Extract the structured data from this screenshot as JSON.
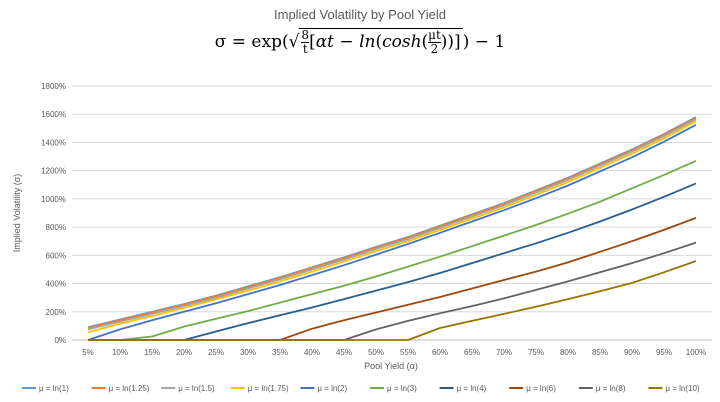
{
  "chart_data": {
    "type": "line",
    "title": "Implied Volatility by Pool Yield",
    "formula": {
      "lhs": "σ = exp",
      "frac_num": "8",
      "frac_den": "t",
      "body": "αt − ln",
      "cosh": "cosh",
      "inner_num": "μt",
      "inner_den": "2",
      "tail": "− 1"
    },
    "xlabel": "Pool Yield (α)",
    "ylabel": "Implied Volatility (σ)",
    "categories": [
      "5%",
      "10%",
      "15%",
      "20%",
      "25%",
      "30%",
      "35%",
      "40%",
      "45%",
      "50%",
      "55%",
      "60%",
      "65%",
      "70%",
      "75%",
      "80%",
      "85%",
      "90%",
      "95%",
      "100%"
    ],
    "yticks": [
      "0%",
      "200%",
      "400%",
      "600%",
      "800%",
      "1000%",
      "1200%",
      "1400%",
      "1600%",
      "1800%"
    ],
    "ylim": [
      0,
      1800
    ],
    "grid": true,
    "legend_position": "bottom",
    "series": [
      {
        "name": "μ = ln(1)",
        "color": "#5b9bd5",
        "values": [
          90,
          145,
          200,
          255,
          315,
          380,
          445,
          515,
          585,
          660,
          730,
          810,
          890,
          970,
          1060,
          1150,
          1250,
          1350,
          1460,
          1580
        ]
      },
      {
        "name": "μ = ln(1.25)",
        "color": "#ed7d31",
        "values": [
          85,
          140,
          195,
          250,
          310,
          375,
          440,
          510,
          580,
          655,
          725,
          805,
          885,
          965,
          1055,
          1145,
          1245,
          1345,
          1455,
          1575
        ]
      },
      {
        "name": "μ = ln(1.5)",
        "color": "#a5a5a5",
        "values": [
          75,
          130,
          185,
          242,
          300,
          365,
          430,
          500,
          570,
          645,
          715,
          795,
          875,
          955,
          1045,
          1135,
          1235,
          1335,
          1445,
          1565
        ]
      },
      {
        "name": "μ = ln(1.75)",
        "color": "#ffc000",
        "values": [
          55,
          115,
          170,
          228,
          288,
          350,
          415,
          485,
          555,
          630,
          700,
          780,
          860,
          940,
          1030,
          1120,
          1220,
          1320,
          1430,
          1550
        ]
      },
      {
        "name": "μ = ln(2)",
        "color": "#4472c4",
        "values": [
          0,
          75,
          140,
          200,
          260,
          325,
          390,
          460,
          530,
          605,
          680,
          760,
          840,
          920,
          1005,
          1095,
          1195,
          1295,
          1405,
          1525
        ]
      },
      {
        "name": "μ = ln(3)",
        "color": "#70ad47",
        "values": [
          0,
          0,
          25,
          95,
          150,
          205,
          265,
          325,
          385,
          450,
          520,
          590,
          665,
          740,
          815,
          895,
          980,
          1075,
          1170,
          1270
        ]
      },
      {
        "name": "μ = ln(4)",
        "color": "#255e91",
        "values": [
          0,
          0,
          0,
          0,
          60,
          120,
          175,
          230,
          290,
          350,
          410,
          475,
          545,
          615,
          685,
          760,
          840,
          925,
          1015,
          1110
        ]
      },
      {
        "name": "μ = ln(6)",
        "color": "#9e480e",
        "values": [
          0,
          0,
          0,
          0,
          0,
          0,
          0,
          80,
          140,
          195,
          250,
          305,
          365,
          425,
          485,
          550,
          625,
          700,
          780,
          865
        ]
      },
      {
        "name": "μ = ln(8)",
        "color": "#636363",
        "values": [
          0,
          0,
          0,
          0,
          0,
          0,
          0,
          0,
          0,
          75,
          135,
          190,
          240,
          295,
          355,
          415,
          480,
          545,
          615,
          690
        ]
      },
      {
        "name": "μ = ln(10)",
        "color": "#997300",
        "values": [
          0,
          0,
          0,
          0,
          0,
          0,
          0,
          0,
          0,
          0,
          0,
          85,
          135,
          185,
          235,
          290,
          345,
          405,
          480,
          560
        ]
      }
    ]
  }
}
